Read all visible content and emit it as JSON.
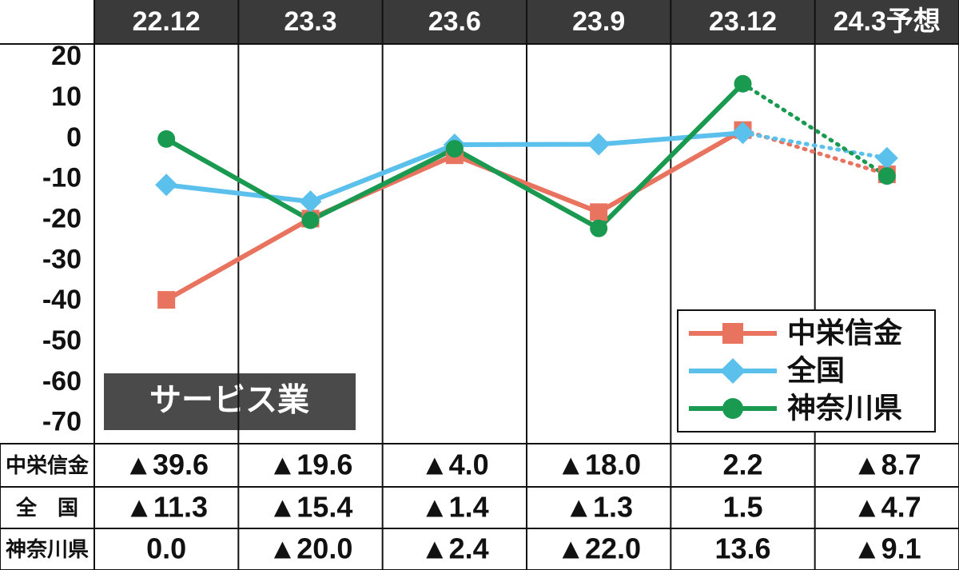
{
  "chart_data": {
    "type": "line",
    "categories": [
      "22.12",
      "23.3",
      "23.6",
      "23.9",
      "23.12",
      "24.3予想"
    ],
    "series": [
      {
        "name": "中栄信金",
        "color": "#e8735f",
        "marker": "square",
        "values": [
          -39.6,
          -19.6,
          -4.0,
          -18.0,
          2.2,
          -8.7
        ],
        "value_labels": [
          "▲39.6",
          "▲19.6",
          "▲4.0",
          "▲18.0",
          "2.2",
          "▲8.7"
        ]
      },
      {
        "name": "全国",
        "color": "#5bc0eb",
        "marker": "diamond",
        "values": [
          -11.3,
          -15.4,
          -1.4,
          -1.3,
          1.5,
          -4.7
        ],
        "value_labels": [
          "▲11.3",
          "▲15.4",
          "▲1.4",
          "▲1.3",
          "1.5",
          "▲4.7"
        ]
      },
      {
        "name": "神奈川県",
        "color": "#1a9a50",
        "marker": "circle",
        "values": [
          0.0,
          -20.0,
          -2.4,
          -22.0,
          13.6,
          -9.1
        ],
        "value_labels": [
          "0.0",
          "▲20.0",
          "▲2.4",
          "▲22.0",
          "13.6",
          "▲9.1"
        ]
      }
    ],
    "table_row_labels": [
      "中栄信金",
      "全　国",
      "神奈川県"
    ],
    "annotation": "サービス業",
    "ylim": [
      -75,
      23
    ],
    "yticks": [
      20,
      10,
      0,
      -10,
      -20,
      -30,
      -40,
      -50,
      -60,
      -70
    ],
    "last_segment_style": "dotted",
    "legend": "lower right"
  }
}
